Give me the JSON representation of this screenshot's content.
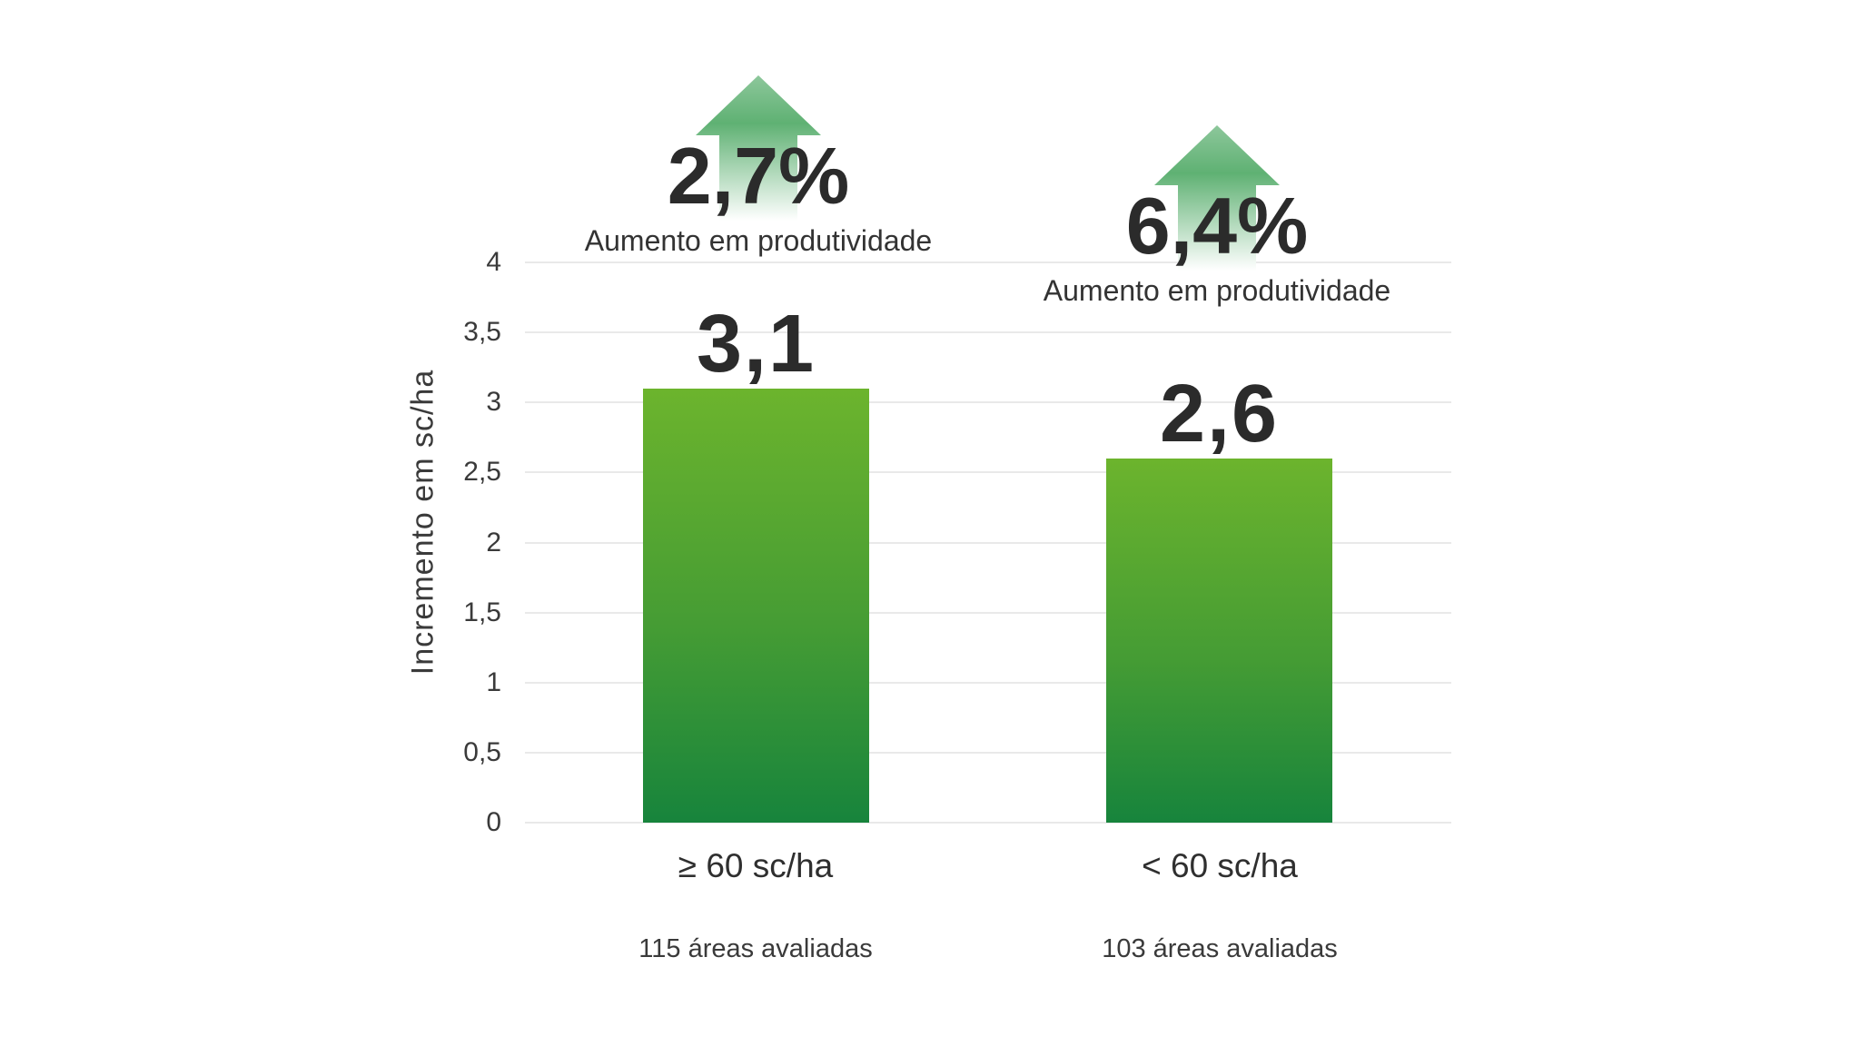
{
  "chart_data": {
    "type": "bar",
    "title": "",
    "ylabel": "Incremento em sc/ha",
    "xlabel": "",
    "ylim": [
      0,
      4
    ],
    "ytick_step": 0.5,
    "yticks": [
      4,
      3.5,
      3,
      2.5,
      2,
      1.5,
      1,
      0.5,
      0
    ],
    "ytick_labels": [
      "4",
      "3,5",
      "3",
      "2,5",
      "2",
      "1,5",
      "1",
      "0,5",
      "0"
    ],
    "grid": true,
    "legend": false,
    "categories": [
      "≥ 60 sc/ha",
      "< 60 sc/ha"
    ],
    "values": [
      3.1,
      2.6
    ],
    "value_labels": [
      "3,1",
      "2,6"
    ],
    "footnotes": [
      "115 áreas avaliadas",
      "103 áreas avaliadas"
    ],
    "annotations": [
      {
        "pct": "2,7%",
        "caption": "Aumento em produtividade"
      },
      {
        "pct": "6,4%",
        "caption": "Aumento em produtividade"
      }
    ],
    "colors": {
      "bar_gradient_top": "#6cb42d",
      "bar_gradient_bottom": "#17843c",
      "arrow_green": "#5fb173",
      "gridline": "#e9e9e9",
      "text": "#2b2b2b"
    }
  }
}
